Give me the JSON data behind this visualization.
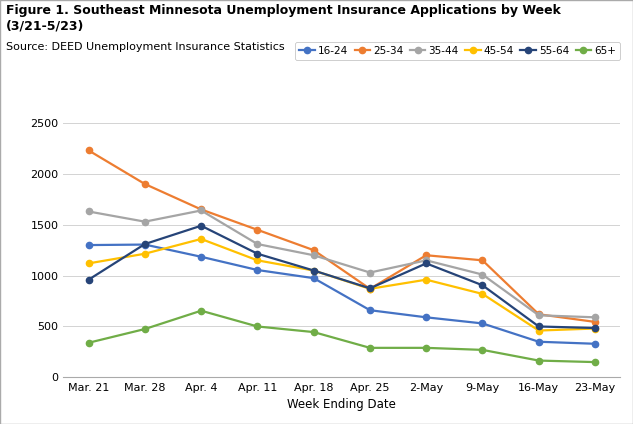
{
  "title": "Figure 1. Southeast Minnesota Unemployment Insurance Applications by Week (3/21-5/23)",
  "subtitle": "Source: DEED Unemployment Insurance Statistics",
  "xlabel": "Week Ending Date",
  "x_labels": [
    "Mar. 21",
    "Mar. 28",
    "Apr. 4",
    "Apr. 11",
    "Apr. 18",
    "Apr. 25",
    "2-May",
    "9-May",
    "16-May",
    "23-May"
  ],
  "series": {
    "16-24": {
      "values": [
        1300,
        1305,
        1185,
        1055,
        975,
        660,
        590,
        530,
        350,
        330
      ],
      "color": "#4472C4",
      "marker": "o"
    },
    "25-34": {
      "values": [
        2230,
        1900,
        1650,
        1450,
        1250,
        870,
        1200,
        1150,
        620,
        545
      ],
      "color": "#ED7D31",
      "marker": "o"
    },
    "35-44": {
      "values": [
        1630,
        1530,
        1640,
        1310,
        1200,
        1030,
        1150,
        1010,
        610,
        590
      ],
      "color": "#A5A5A5",
      "marker": "o"
    },
    "45-54": {
      "values": [
        1120,
        1215,
        1360,
        1150,
        1050,
        870,
        960,
        820,
        460,
        480
      ],
      "color": "#FFC000",
      "marker": "o"
    },
    "55-64": {
      "values": [
        960,
        1310,
        1490,
        1215,
        1050,
        875,
        1120,
        905,
        500,
        485
      ],
      "color": "#264478",
      "marker": "o"
    },
    "65+": {
      "values": [
        340,
        475,
        655,
        500,
        445,
        290,
        290,
        270,
        165,
        150
      ],
      "color": "#70AD47",
      "marker": "o"
    }
  },
  "ylim": [
    0,
    2500
  ],
  "yticks": [
    0,
    500,
    1000,
    1500,
    2000,
    2500
  ],
  "figsize": [
    6.33,
    4.24
  ],
  "dpi": 100,
  "background_color": "#FFFFFF",
  "grid_color": "#D3D3D3",
  "title_fontsize": 9,
  "subtitle_fontsize": 8,
  "axis_label_fontsize": 8.5,
  "tick_fontsize": 8,
  "legend_fontsize": 7.5,
  "linewidth": 1.6,
  "markersize": 4.5
}
